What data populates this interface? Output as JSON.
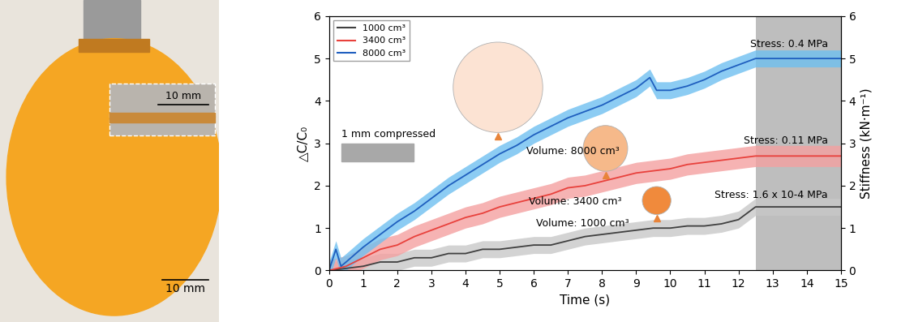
{
  "chart_data": {
    "type": "line",
    "x_label": "Time (s)",
    "y_label": "△C/C₀",
    "y2_label": "Stiffness (kN·m⁻¹)",
    "xlim": [
      0,
      15
    ],
    "xticks": [
      0,
      1,
      2,
      3,
      4,
      5,
      6,
      7,
      8,
      9,
      10,
      11,
      12,
      13,
      14,
      15
    ],
    "ylim": [
      0,
      6
    ],
    "yticks": [
      0,
      1,
      2,
      3,
      4,
      5,
      6
    ],
    "y2lim": [
      0,
      6
    ],
    "y2ticks": [
      0,
      1,
      2,
      3,
      4,
      5,
      6
    ],
    "legend": "upper left",
    "shaded_region": [
      12.5,
      15
    ],
    "shaded_label": "1 mm compressed",
    "series": [
      {
        "name": "1000 cm³",
        "color": "#404040",
        "band_color": "#c8c8c8",
        "volume_label": "Volume: 1000 cm³",
        "stress_label": "Stress: 1.6 x 10-4 MPa",
        "balloon_color": "#f08a3c",
        "x": [
          0,
          0.5,
          1,
          1.5,
          2,
          2.5,
          3,
          3.5,
          4,
          4.5,
          5,
          5.5,
          6,
          6.5,
          7,
          7.5,
          8,
          8.5,
          9,
          9.5,
          10,
          10.5,
          11,
          11.5,
          12,
          12.5,
          13,
          13.5,
          14,
          14.5,
          15
        ],
        "values": [
          0,
          0.05,
          0.1,
          0.2,
          0.2,
          0.3,
          0.3,
          0.4,
          0.4,
          0.5,
          0.5,
          0.55,
          0.6,
          0.6,
          0.7,
          0.8,
          0.85,
          0.9,
          0.95,
          1.0,
          1.0,
          1.05,
          1.05,
          1.1,
          1.2,
          1.5,
          1.5,
          1.5,
          1.5,
          1.5,
          1.5
        ],
        "error": [
          0.2,
          0.2,
          0.2,
          0.2,
          0.2,
          0.2,
          0.2,
          0.2,
          0.2,
          0.2,
          0.2,
          0.2,
          0.2,
          0.2,
          0.2,
          0.2,
          0.2,
          0.2,
          0.2,
          0.2,
          0.2,
          0.2,
          0.2,
          0.2,
          0.2,
          0.2,
          0.2,
          0.2,
          0.2,
          0.2,
          0.2
        ]
      },
      {
        "name": "3400 cm³",
        "color": "#e8413c",
        "band_color": "#f4a0a0",
        "volume_label": "Volume: 3400 cm³",
        "stress_label": "Stress: 0.11 MPa",
        "balloon_color": "#f6b98a",
        "x": [
          0,
          0.5,
          1,
          1.5,
          2,
          2.5,
          3,
          3.5,
          4,
          4.5,
          5,
          5.5,
          6,
          6.5,
          7,
          7.5,
          8,
          8.5,
          9,
          9.5,
          10,
          10.5,
          11,
          11.5,
          12,
          12.5,
          13,
          13.5,
          14,
          14.5,
          15
        ],
        "values": [
          0,
          0.1,
          0.3,
          0.5,
          0.6,
          0.8,
          0.95,
          1.1,
          1.25,
          1.35,
          1.5,
          1.6,
          1.7,
          1.8,
          1.95,
          2.0,
          2.1,
          2.2,
          2.3,
          2.35,
          2.4,
          2.5,
          2.55,
          2.6,
          2.65,
          2.7,
          2.7,
          2.7,
          2.7,
          2.7,
          2.7
        ],
        "error": [
          0.25,
          0.25,
          0.25,
          0.25,
          0.25,
          0.25,
          0.25,
          0.25,
          0.25,
          0.25,
          0.25,
          0.25,
          0.25,
          0.25,
          0.25,
          0.25,
          0.25,
          0.25,
          0.25,
          0.25,
          0.25,
          0.25,
          0.25,
          0.25,
          0.25,
          0.25,
          0.25,
          0.25,
          0.25,
          0.25,
          0.25
        ]
      },
      {
        "name": "8000 cm³",
        "color": "#1f5fbf",
        "band_color": "#6fc0f0",
        "volume_label": "Volume: 8000 cm³",
        "stress_label": "Stress: 0.4 MPa",
        "balloon_color": "#fce3d3",
        "x": [
          0,
          0.2,
          0.35,
          0.5,
          1,
          1.5,
          2,
          2.5,
          3,
          3.5,
          4,
          4.5,
          5,
          5.5,
          6,
          6.5,
          7,
          7.5,
          8,
          8.5,
          9,
          9.4,
          9.6,
          10,
          10.5,
          11,
          11.5,
          12,
          12.5,
          13,
          13.5,
          14,
          14.5,
          15
        ],
        "values": [
          0,
          0.5,
          0.1,
          0.2,
          0.55,
          0.85,
          1.15,
          1.4,
          1.7,
          2.0,
          2.25,
          2.5,
          2.75,
          2.95,
          3.2,
          3.4,
          3.6,
          3.75,
          3.9,
          4.1,
          4.3,
          4.55,
          4.25,
          4.25,
          4.35,
          4.5,
          4.7,
          4.85,
          5.0,
          5.0,
          5.0,
          5.0,
          5.0,
          5.0
        ],
        "error": [
          0.2,
          0.2,
          0.2,
          0.2,
          0.2,
          0.2,
          0.2,
          0.2,
          0.2,
          0.2,
          0.2,
          0.2,
          0.2,
          0.2,
          0.2,
          0.2,
          0.2,
          0.2,
          0.2,
          0.2,
          0.2,
          0.2,
          0.2,
          0.2,
          0.2,
          0.2,
          0.2,
          0.2,
          0.2,
          0.2,
          0.2,
          0.2,
          0.2,
          0.2
        ]
      }
    ]
  },
  "photo": {
    "inset_scale_label": "10 mm",
    "scale_label": "10 mm"
  }
}
